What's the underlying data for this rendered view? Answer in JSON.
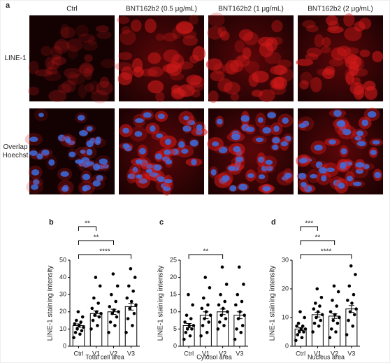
{
  "panel_a": {
    "label": "a",
    "columns": [
      "Ctrl",
      "BNT162b2 (0.5 μg/mL)",
      "BNT162b2 (1 μg/mL)",
      "BNT162b2 (2 μg/mL)"
    ],
    "rows": [
      [
        "LINE-1"
      ],
      [
        "Overlap",
        "Hoechst"
      ]
    ]
  },
  "chart_data": [
    {
      "type": "bar",
      "panel_label": "b",
      "x_label": "Total cell area",
      "y_label": "LINE-1 staining intensity",
      "categories": [
        "Ctrl",
        "V1",
        "V2",
        "V3"
      ],
      "values": [
        12,
        19,
        20,
        23
      ],
      "errors": [
        1,
        1.5,
        1.5,
        2
      ],
      "points": [
        [
          5,
          7,
          8,
          9,
          10,
          11,
          12,
          13,
          14,
          15,
          17,
          20
        ],
        [
          10,
          12,
          15,
          17,
          18,
          19,
          20,
          22,
          25,
          28,
          35,
          40
        ],
        [
          8,
          12,
          14,
          17,
          19,
          20,
          21,
          23,
          26,
          30,
          35,
          42
        ],
        [
          8,
          12,
          16,
          19,
          22,
          24,
          26,
          28,
          32,
          35,
          40,
          45
        ]
      ],
      "ylim": [
        0,
        50
      ],
      "yticks": [
        0,
        10,
        20,
        30,
        40,
        50
      ],
      "significance": [
        {
          "label": "**",
          "compare": [
            "Ctrl",
            "V1"
          ]
        },
        {
          "label": "**",
          "compare": [
            "Ctrl",
            "V2"
          ]
        },
        {
          "label": "****",
          "compare": [
            "Ctrl",
            "V3"
          ]
        }
      ]
    },
    {
      "type": "bar",
      "panel_label": "c",
      "x_label": "Cytosol area",
      "y_label": "LINE-1 staining intensity",
      "categories": [
        "Ctrl",
        "V1",
        "V2",
        "V3"
      ],
      "values": [
        6,
        9,
        10,
        9
      ],
      "errors": [
        0.6,
        1,
        0.8,
        1
      ],
      "points": [
        [
          2,
          3,
          4,
          5,
          5,
          6,
          6,
          7,
          8,
          9,
          12,
          15
        ],
        [
          3,
          4,
          6,
          7,
          8,
          9,
          10,
          11,
          12,
          14,
          17,
          20
        ],
        [
          5,
          6,
          7,
          8,
          9,
          10,
          11,
          12,
          13,
          15,
          18,
          23
        ],
        [
          2,
          4,
          5,
          6,
          8,
          9,
          10,
          12,
          13,
          15,
          18,
          23
        ]
      ],
      "ylim": [
        0,
        25
      ],
      "yticks": [
        0,
        5,
        10,
        15,
        20,
        25
      ],
      "significance": [
        {
          "label": "**",
          "compare": [
            "Ctrl",
            "V2"
          ]
        }
      ]
    },
    {
      "type": "bar",
      "panel_label": "d",
      "x_label": "Nucleus area",
      "y_label": "LINE-1 staining intensity",
      "categories": [
        "Ctrl",
        "V1",
        "V2",
        "V3"
      ],
      "values": [
        6,
        11,
        10.5,
        13
      ],
      "errors": [
        0.5,
        0.8,
        0.8,
        1.2
      ],
      "points": [
        [
          2,
          3,
          4,
          5,
          5,
          6,
          6,
          7,
          7,
          8,
          10,
          12
        ],
        [
          5,
          7,
          8,
          9,
          10,
          11,
          12,
          13,
          14,
          15,
          17,
          20
        ],
        [
          3,
          5,
          6,
          8,
          9,
          10,
          11,
          12,
          14,
          16,
          19,
          21
        ],
        [
          4,
          7,
          9,
          11,
          12,
          13,
          15,
          16,
          18,
          21,
          25,
          28
        ]
      ],
      "ylim": [
        0,
        30
      ],
      "yticks": [
        0,
        10,
        20,
        30
      ],
      "significance": [
        {
          "label": "***",
          "compare": [
            "Ctrl",
            "V1"
          ]
        },
        {
          "label": "**",
          "compare": [
            "Ctrl",
            "V2"
          ]
        },
        {
          "label": "****",
          "compare": [
            "Ctrl",
            "V3"
          ]
        }
      ]
    }
  ]
}
